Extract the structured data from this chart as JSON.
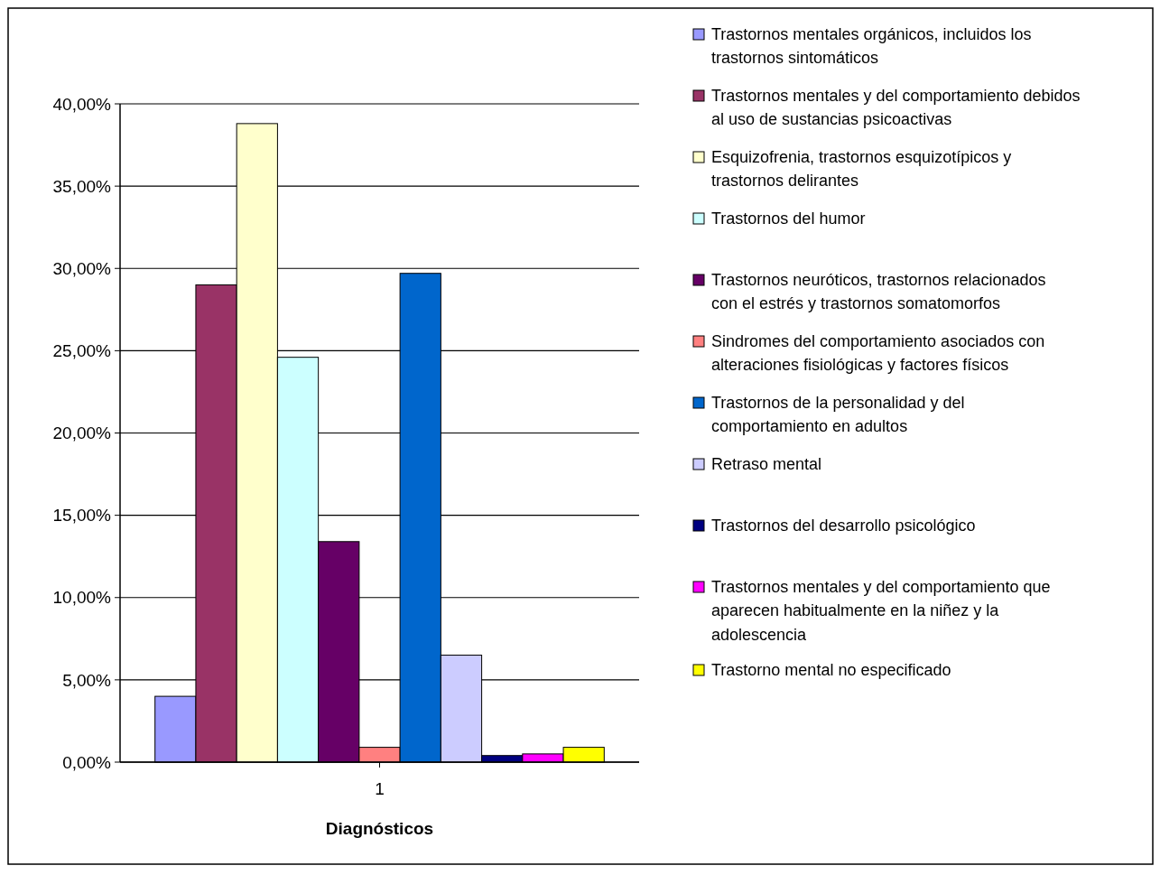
{
  "chart_data": {
    "type": "bar",
    "xlabel": "Diagnósticos",
    "categories": [
      "1"
    ],
    "series": [
      {
        "name": "Trastornos mentales orgánicos, incluidos los trastornos sintomáticos",
        "color": "#9999ff",
        "values": [
          4.0
        ]
      },
      {
        "name": "Trastornos mentales y del comportamiento debidos al uso de sustancias psicoactivas",
        "color": "#993366",
        "values": [
          29.0
        ]
      },
      {
        "name": "Esquizofrenia, trastornos esquizotípicos y trastornos delirantes",
        "color": "#ffffcc",
        "values": [
          38.8
        ]
      },
      {
        "name": "Trastornos del humor",
        "color": "#ccffff",
        "values": [
          24.6
        ]
      },
      {
        "name": "Trastornos neuróticos, trastornos relacionados con el estrés y trastornos somatomorfos",
        "color": "#660066",
        "values": [
          13.4
        ]
      },
      {
        "name": "Sindromes del comportamiento asociados con alteraciones fisiológicas y factores físicos",
        "color": "#ff8080",
        "values": [
          0.9
        ]
      },
      {
        "name": "Trastornos de la personalidad y del comportamiento en adultos",
        "color": "#0066cc",
        "values": [
          29.7
        ]
      },
      {
        "name": "Retraso mental",
        "color": "#ccccff",
        "values": [
          6.5
        ]
      },
      {
        "name": "Trastornos del desarrollo psicológico",
        "color": "#000080",
        "values": [
          0.4
        ]
      },
      {
        "name": "Trastornos mentales y del comportamiento que aparecen habitualmente en la niñez y la adolescencia",
        "color": "#ff00ff",
        "values": [
          0.5
        ]
      },
      {
        "name": "Trastorno mental no especificado",
        "color": "#ffff00",
        "values": [
          0.9
        ]
      }
    ],
    "ylim": [
      0,
      40
    ],
    "yticks": [
      {
        "value": 0,
        "label": "0,00%"
      },
      {
        "value": 5,
        "label": "5,00%"
      },
      {
        "value": 10,
        "label": "10,00%"
      },
      {
        "value": 15,
        "label": "15,00%"
      },
      {
        "value": 20,
        "label": "20,00%"
      },
      {
        "value": 25,
        "label": "25,00%"
      },
      {
        "value": 30,
        "label": "30,00%"
      },
      {
        "value": 35,
        "label": "35,00%"
      },
      {
        "value": 40,
        "label": "40,00%"
      }
    ],
    "grid": "y",
    "legend": "right"
  }
}
